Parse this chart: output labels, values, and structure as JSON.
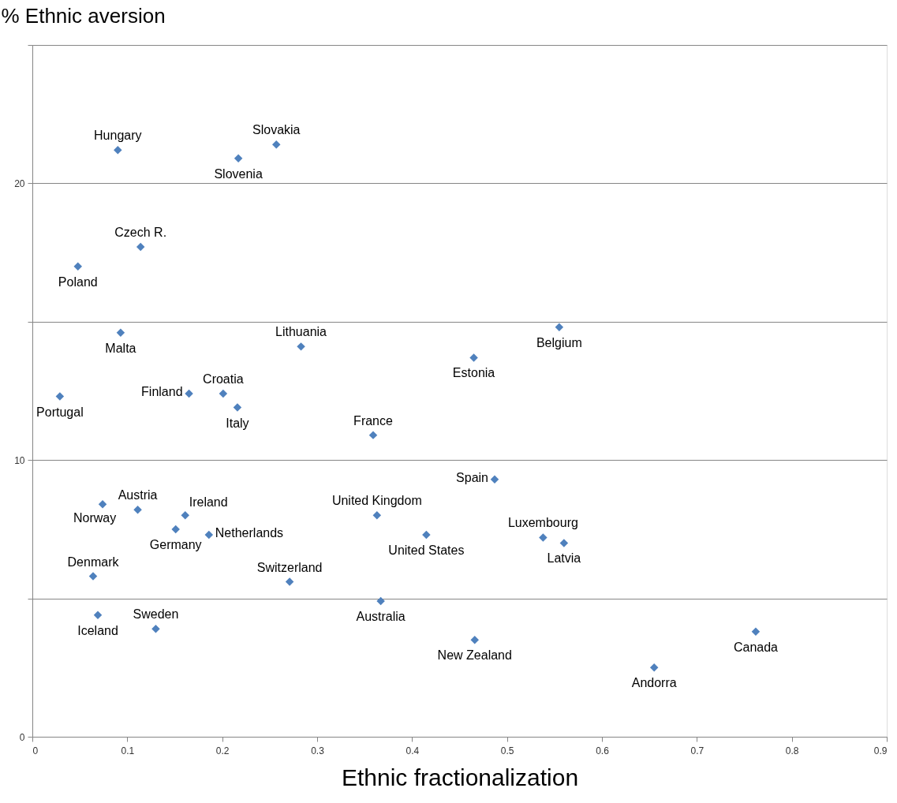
{
  "chart_data": {
    "type": "scatter",
    "ylabel": "% Ethnic aversion",
    "xlabel": "Ethnic fractionalization",
    "xlim": [
      0,
      0.9
    ],
    "xticks": [
      0,
      0.1,
      0.2,
      0.3,
      0.4,
      0.5,
      0.6,
      0.7,
      0.8,
      0.9
    ],
    "ylim": [
      0,
      25
    ],
    "yticks": [
      0,
      {
        "value": 5,
        "label": null
      },
      10,
      {
        "value": 15,
        "label": null
      },
      20,
      {
        "value": 25,
        "label": null
      }
    ],
    "grid": "y",
    "marker": "diamond",
    "x": [
      0.09,
      0.217,
      0.257,
      0.114,
      0.048,
      0.093,
      0.283,
      0.555,
      0.465,
      0.029,
      0.165,
      0.201,
      0.216,
      0.359,
      0.487,
      0.074,
      0.111,
      0.161,
      0.363,
      0.151,
      0.186,
      0.415,
      0.538,
      0.56,
      0.064,
      0.271,
      0.367,
      0.069,
      0.13,
      0.466,
      0.655,
      0.762
    ],
    "series": [
      {
        "color": "#4f81bd",
        "values": [
          21.2,
          20.9,
          21.4,
          17.7,
          17.0,
          14.6,
          14.1,
          14.8,
          13.7,
          12.3,
          12.4,
          12.4,
          11.9,
          10.9,
          9.3,
          8.4,
          8.2,
          8.0,
          8.0,
          7.5,
          7.3,
          7.3,
          7.2,
          7.0,
          5.8,
          5.6,
          4.9,
          4.4,
          3.9,
          3.5,
          2.5,
          3.8
        ]
      }
    ],
    "annotations": [
      {
        "text": "Hungary",
        "x": 0.09,
        "y": 21.2
      },
      {
        "text": "Slovenia",
        "x": 0.217,
        "y": 20.9
      },
      {
        "text": "Slovakia",
        "x": 0.257,
        "y": 21.4
      },
      {
        "text": "Czech R.",
        "x": 0.114,
        "y": 17.7
      },
      {
        "text": "Poland",
        "x": 0.048,
        "y": 17.0
      },
      {
        "text": "Malta",
        "x": 0.093,
        "y": 14.6
      },
      {
        "text": "Lithuania",
        "x": 0.283,
        "y": 14.1
      },
      {
        "text": "Belgium",
        "x": 0.555,
        "y": 14.8
      },
      {
        "text": "Estonia",
        "x": 0.465,
        "y": 13.7
      },
      {
        "text": "Portugal",
        "x": 0.029,
        "y": 12.3
      },
      {
        "text": "Finland",
        "x": 0.165,
        "y": 12.4
      },
      {
        "text": "Croatia",
        "x": 0.201,
        "y": 12.4
      },
      {
        "text": "Italy",
        "x": 0.216,
        "y": 11.9
      },
      {
        "text": "France",
        "x": 0.359,
        "y": 10.9
      },
      {
        "text": "Spain",
        "x": 0.487,
        "y": 9.3
      },
      {
        "text": "Norway",
        "x": 0.074,
        "y": 8.4
      },
      {
        "text": "Austria",
        "x": 0.111,
        "y": 8.2
      },
      {
        "text": "Ireland",
        "x": 0.161,
        "y": 8.0
      },
      {
        "text": "United Kingdom",
        "x": 0.363,
        "y": 8.0
      },
      {
        "text": "Germany",
        "x": 0.151,
        "y": 7.5
      },
      {
        "text": "Netherlands",
        "x": 0.186,
        "y": 7.3
      },
      {
        "text": "United States",
        "x": 0.415,
        "y": 7.3
      },
      {
        "text": "Luxembourg",
        "x": 0.538,
        "y": 7.2
      },
      {
        "text": "Latvia",
        "x": 0.56,
        "y": 7.0
      },
      {
        "text": "Denmark",
        "x": 0.064,
        "y": 5.8
      },
      {
        "text": "Switzerland",
        "x": 0.271,
        "y": 5.6
      },
      {
        "text": "Australia",
        "x": 0.367,
        "y": 4.9
      },
      {
        "text": "Iceland",
        "x": 0.069,
        "y": 4.4
      },
      {
        "text": "Sweden",
        "x": 0.13,
        "y": 3.9
      },
      {
        "text": "New Zealand",
        "x": 0.466,
        "y": 3.5
      },
      {
        "text": "Andorra",
        "x": 0.655,
        "y": 2.5
      },
      {
        "text": "Canada",
        "x": 0.762,
        "y": 3.8
      }
    ]
  }
}
